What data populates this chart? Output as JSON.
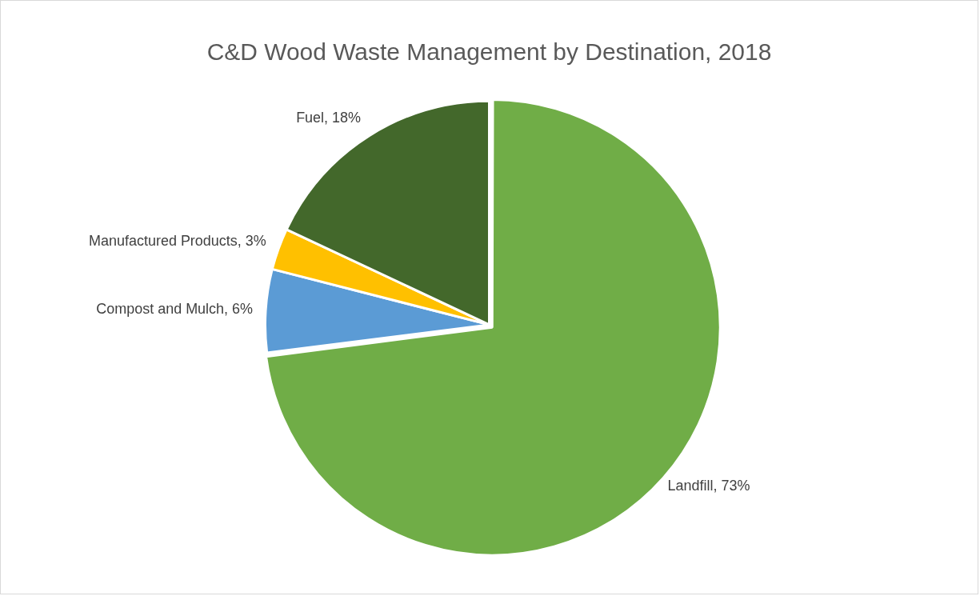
{
  "chart_data": {
    "type": "pie",
    "title": "C&D Wood Waste Management by Destination, 2018",
    "categories": [
      "Landfill",
      "Compost and Mulch",
      "Manufactured Products",
      "Fuel"
    ],
    "values": [
      73,
      6,
      3,
      18
    ],
    "colors": [
      "#70ad47",
      "#5b9bd5",
      "#ffc000",
      "#43682b"
    ],
    "value_labels": [
      "73%",
      "6%",
      "3%",
      "18%"
    ],
    "legend": false
  }
}
